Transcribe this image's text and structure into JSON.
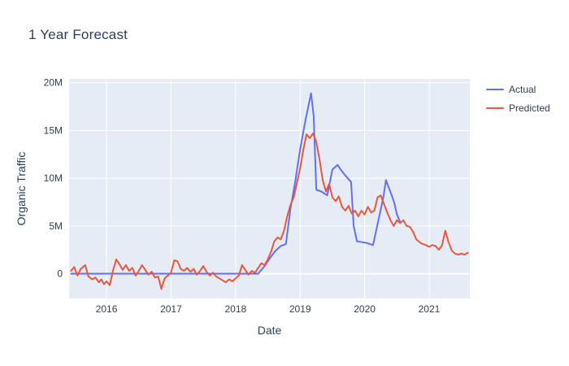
{
  "chart_data": {
    "type": "line",
    "title": "1 Year Forecast",
    "xlabel": "Date",
    "ylabel": "Organic Traffic",
    "grid": true,
    "legend_position": "right",
    "x_range": [
      2015.42,
      2021.63
    ],
    "y_range_millions": [
      -2.6,
      20.4
    ],
    "x_tick_values": [
      2016,
      2017,
      2018,
      2019,
      2020,
      2021
    ],
    "x_tick_labels": [
      "2016",
      "2017",
      "2018",
      "2019",
      "2020",
      "2021"
    ],
    "y_tick_values": [
      0,
      5,
      10,
      15,
      20
    ],
    "y_tick_labels": [
      "0",
      "5M",
      "10M",
      "15M",
      "20M"
    ],
    "colors": {
      "plot_background": "#e5ecf6",
      "gridline": "#ffffff",
      "text": "#2a3f5f"
    },
    "series": [
      {
        "name": "Actual",
        "color": "#636efa",
        "x": [
          2015.45,
          2018.35,
          2018.45,
          2018.55,
          2018.62,
          2018.7,
          2018.78,
          2018.85,
          2018.92,
          2019.0,
          2019.08,
          2019.17,
          2019.21,
          2019.25,
          2019.33,
          2019.42,
          2019.5,
          2019.58,
          2019.63,
          2019.71,
          2019.79,
          2019.83,
          2019.88,
          2019.96,
          2020.04,
          2020.13,
          2020.21,
          2020.29,
          2020.33,
          2020.38,
          2020.42,
          2020.46,
          2020.5,
          2020.55
        ],
        "y_millions": [
          0,
          0,
          0.8,
          1.8,
          2.4,
          2.9,
          3.1,
          6.8,
          9.5,
          13.0,
          16.0,
          18.9,
          16.5,
          8.8,
          8.6,
          8.2,
          10.9,
          11.4,
          10.9,
          10.2,
          9.6,
          5.0,
          3.4,
          3.3,
          3.2,
          3.0,
          5.5,
          8.0,
          9.8,
          8.9,
          8.2,
          7.4,
          6.2,
          5.4
        ]
      },
      {
        "name": "Predicted",
        "color": "#ef553b",
        "x": [
          2015.45,
          2015.5,
          2015.55,
          2015.6,
          2015.67,
          2015.72,
          2015.78,
          2015.83,
          2015.88,
          2015.92,
          2015.96,
          2016.0,
          2016.05,
          2016.1,
          2016.15,
          2016.2,
          2016.25,
          2016.3,
          2016.35,
          2016.4,
          2016.45,
          2016.5,
          2016.55,
          2016.6,
          2016.65,
          2016.7,
          2016.75,
          2016.8,
          2016.85,
          2016.9,
          2016.95,
          2017.0,
          2017.05,
          2017.1,
          2017.15,
          2017.2,
          2017.25,
          2017.3,
          2017.35,
          2017.4,
          2017.45,
          2017.5,
          2017.55,
          2017.6,
          2017.65,
          2017.7,
          2017.75,
          2017.8,
          2017.85,
          2017.9,
          2017.95,
          2018.0,
          2018.05,
          2018.1,
          2018.15,
          2018.2,
          2018.25,
          2018.3,
          2018.35,
          2018.4,
          2018.45,
          2018.5,
          2018.55,
          2018.6,
          2018.65,
          2018.7,
          2018.75,
          2018.8,
          2018.85,
          2018.9,
          2018.95,
          2019.0,
          2019.05,
          2019.1,
          2019.15,
          2019.2,
          2019.25,
          2019.3,
          2019.35,
          2019.4,
          2019.45,
          2019.5,
          2019.55,
          2019.6,
          2019.65,
          2019.7,
          2019.75,
          2019.8,
          2019.85,
          2019.9,
          2019.95,
          2020.0,
          2020.05,
          2020.1,
          2020.15,
          2020.2,
          2020.25,
          2020.3,
          2020.35,
          2020.4,
          2020.45,
          2020.5,
          2020.55,
          2020.6,
          2020.65,
          2020.7,
          2020.75,
          2020.8,
          2020.85,
          2020.9,
          2020.95,
          2021.0,
          2021.05,
          2021.1,
          2021.15,
          2021.2,
          2021.25,
          2021.3,
          2021.35,
          2021.4,
          2021.45,
          2021.5,
          2021.55,
          2021.6
        ],
        "y_millions": [
          0.3,
          0.7,
          -0.2,
          0.5,
          0.9,
          -0.3,
          -0.6,
          -0.4,
          -0.9,
          -0.6,
          -1.1,
          -0.8,
          -1.2,
          0.3,
          1.5,
          1.0,
          0.4,
          0.9,
          0.3,
          0.6,
          -0.2,
          0.3,
          0.9,
          0.4,
          -0.1,
          0.2,
          -0.4,
          -0.3,
          -1.6,
          -0.5,
          -0.2,
          0.1,
          1.4,
          1.3,
          0.5,
          0.3,
          0.6,
          0.2,
          0.5,
          -0.1,
          0.3,
          0.8,
          0.2,
          -0.2,
          0.1,
          -0.3,
          -0.5,
          -0.7,
          -0.9,
          -0.6,
          -0.8,
          -0.5,
          -0.2,
          0.9,
          0.4,
          -0.1,
          0.3,
          0.1,
          0.6,
          1.1,
          0.9,
          1.5,
          2.3,
          3.4,
          3.8,
          3.6,
          4.5,
          6.0,
          7.2,
          8.0,
          9.5,
          11.0,
          13.0,
          14.6,
          14.2,
          14.7,
          13.8,
          12.0,
          9.8,
          8.6,
          9.4,
          8.0,
          7.6,
          8.1,
          7.0,
          6.6,
          7.1,
          6.3,
          6.6,
          6.0,
          6.6,
          6.2,
          7.0,
          6.4,
          6.6,
          8.0,
          8.2,
          7.3,
          6.4,
          5.6,
          5.0,
          5.6,
          5.3,
          5.6,
          5.0,
          4.9,
          4.4,
          3.6,
          3.3,
          3.1,
          3.0,
          2.8,
          3.0,
          2.9,
          2.5,
          3.0,
          4.5,
          3.3,
          2.4,
          2.1,
          2.0,
          2.1,
          2.0,
          2.2
        ]
      }
    ]
  }
}
